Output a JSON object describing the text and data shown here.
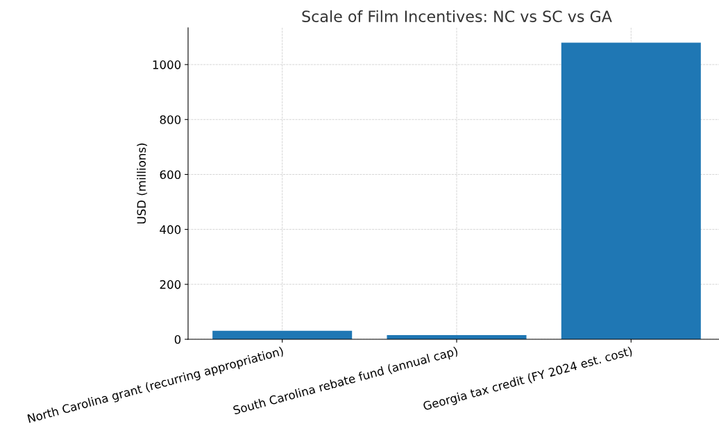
{
  "chart_data": {
    "type": "bar",
    "title": "Scale of Film Incentives: NC vs SC vs GA",
    "ylabel": "USD (millions)",
    "categories": [
      "North Carolina grant (recurring appropriation)",
      "South Carolina rebate fund (annual cap)",
      "Georgia tax credit (FY 2024 est. cost)"
    ],
    "values": [
      31,
      15,
      1080
    ],
    "color": "#1f77b4",
    "ylim": [
      0,
      1134
    ],
    "yticks": [
      0,
      200,
      400,
      600,
      800,
      1000
    ],
    "grid": true
  }
}
